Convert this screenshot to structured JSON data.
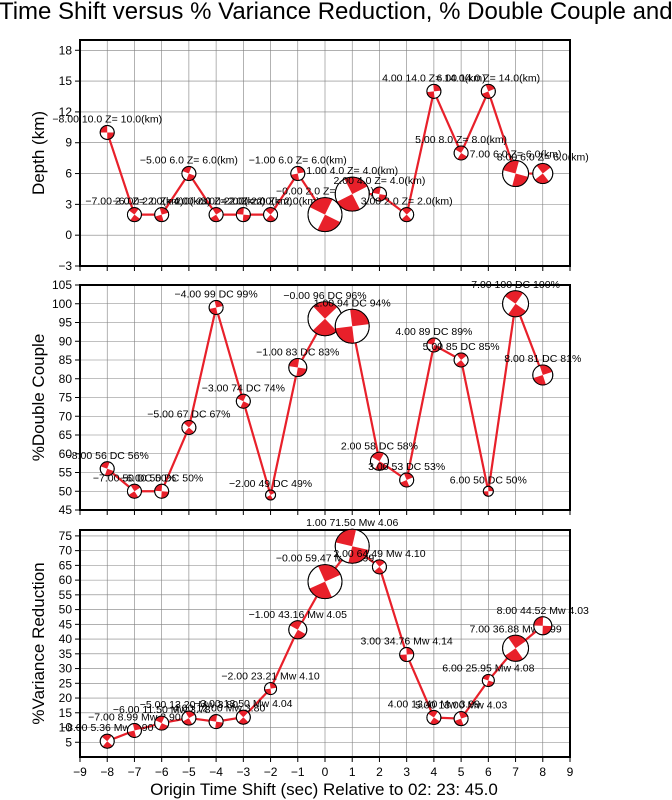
{
  "page": {
    "title": "Origin Time Shift versus % Variance Reduction, % Double Couple and Depth",
    "x_axis_label": "Origin Time Shift (sec) Relative to 02: 23: 45.0"
  },
  "colors": {
    "line": "#e8202a",
    "beachball_fill": "#e8202a",
    "grid": "#000000",
    "text": "#000000"
  },
  "chart_data": [
    {
      "type": "line",
      "name": "depth",
      "ylabel": "Depth (km)",
      "xlim": [
        -9,
        9
      ],
      "ylim": [
        -3,
        19
      ],
      "xticks": [
        -9,
        -8,
        -7,
        -6,
        -5,
        -4,
        -3,
        -2,
        -1,
        0,
        1,
        2,
        3,
        4,
        5,
        6,
        7,
        8,
        9
      ],
      "yticks": [
        -3,
        0,
        3,
        6,
        9,
        12,
        15,
        18
      ],
      "x": [
        -8,
        -7,
        -6,
        -5,
        -4,
        -3,
        -2,
        -1,
        0,
        1,
        2,
        3,
        4,
        5,
        6,
        7,
        8
      ],
      "y": [
        10,
        2,
        2,
        6,
        2,
        2,
        2,
        6,
        2,
        4,
        4,
        2,
        14,
        8,
        14,
        6,
        6
      ],
      "labels": [
        "-8.00 10.0 Z= 10.0(km)",
        "-7.00 2.0 Z= 2.0(km)",
        "-6.00 2.0 Z= 2.0(km)",
        "-5.00 6.0 Z= 6.0(km)",
        "-4.00 2.0 Z= 2.0(km)",
        "-3.00 2.0 Z= 2.0(km)",
        "-2.00 2.0 Z= 2.0(km)",
        "-1.00 6.0 Z= 6.0(km)",
        "-0.00 2.0 Z= 2.0(km)",
        "1.00 4.0 Z= 4.0(km)",
        "2.00 4.0 Z= 4.0(km)",
        "3.00 2.0 Z= 2.0(km)",
        "4.00 14.0 Z= 14.0(km)",
        "5.00 8.0 Z= 8.0(km)",
        "6.00 14.0 Z= 14.0(km)",
        "7.00 6.0 Z= 6.0(km)",
        "8.00 6.0 Z= 6.0(km)"
      ]
    },
    {
      "type": "line",
      "name": "double-couple",
      "ylabel": "%Double Couple",
      "xlim": [
        -9,
        9
      ],
      "ylim": [
        45,
        105
      ],
      "xticks": [
        -9,
        -8,
        -7,
        -6,
        -5,
        -4,
        -3,
        -2,
        -1,
        0,
        1,
        2,
        3,
        4,
        5,
        6,
        7,
        8,
        9
      ],
      "yticks": [
        45,
        50,
        55,
        60,
        65,
        70,
        75,
        80,
        85,
        90,
        95,
        100,
        105
      ],
      "x": [
        -8,
        -7,
        -6,
        -5,
        -4,
        -3,
        -2,
        -1,
        0,
        1,
        2,
        3,
        4,
        5,
        6,
        7,
        8
      ],
      "y": [
        56,
        50,
        50,
        67,
        99,
        74,
        49,
        83,
        96,
        94,
        58,
        53,
        89,
        85,
        50,
        100,
        81
      ],
      "labels": [
        "-8.00 56 DC 56%",
        "-7.00 50 DC 50%",
        "-6.00 50 DC 50%",
        "-5.00 67 DC 67%",
        "-4.00 99 DC 99%",
        "-3.00 74 DC 74%",
        "-2.00 49 DC 49%",
        "-1.00 83 DC 83%",
        "-0.00 96 DC 96%",
        "1.00 94 DC 94%",
        "2.00 58 DC 58%",
        "3.00 53 DC 53%",
        "4.00 89 DC 89%",
        "5.00 85 DC 85%",
        "6.00 50 DC 50%",
        "7.00 100 DC 100%",
        "8.00 81 DC 81%"
      ]
    },
    {
      "type": "line",
      "name": "variance-reduction",
      "ylabel": "%Variance Reduction",
      "xlabel": "Origin Time Shift (sec) Relative to 02: 23: 45.0",
      "xlim": [
        -9,
        9
      ],
      "ylim": [
        0,
        77
      ],
      "xticks": [
        -9,
        -8,
        -7,
        -6,
        -5,
        -4,
        -3,
        -2,
        -1,
        0,
        1,
        2,
        3,
        4,
        5,
        6,
        7,
        8,
        9
      ],
      "yticks": [
        5,
        10,
        15,
        20,
        25,
        30,
        35,
        40,
        45,
        50,
        55,
        60,
        65,
        70,
        75
      ],
      "x": [
        -8,
        -7,
        -6,
        -5,
        -4,
        -3,
        -2,
        -1,
        0,
        1,
        2,
        3,
        4,
        5,
        6,
        7,
        8
      ],
      "y": [
        5.36,
        8.99,
        11.5,
        13.2,
        12.0,
        13.5,
        23.21,
        43.16,
        59.47,
        71.5,
        64.5,
        34.76,
        13.4,
        13.0,
        25.95,
        36.88,
        44.52
      ],
      "labels": [
        "-8.00 5.36 Mw 3.90",
        "-7.00 8.99 Mw 3.90",
        "-6.00 11.50 Mw 3.78",
        "-5.00 13.20 Mw 3.80",
        "-4.00 12.00 Mw 3.80",
        "-3.00 13.50 Mw 4.04",
        "-2.00 23.21 Mw 4.10",
        "-1.00 43.16 Mw 4.05",
        "-0.00 59.47 Mw 3.99",
        "1.00 71.50 Mw 4.06",
        "2.00 64.49 Mw 4.10",
        "3.00 34.76 Mw 4.14",
        "4.00 13.40 Mw 3.99",
        "5.00 13.00 Mw 4.03",
        "6.00 25.95 Mw 4.08",
        "7.00 36.88 Mw 3.99",
        "8.00 44.52 Mw 4.03"
      ]
    }
  ]
}
